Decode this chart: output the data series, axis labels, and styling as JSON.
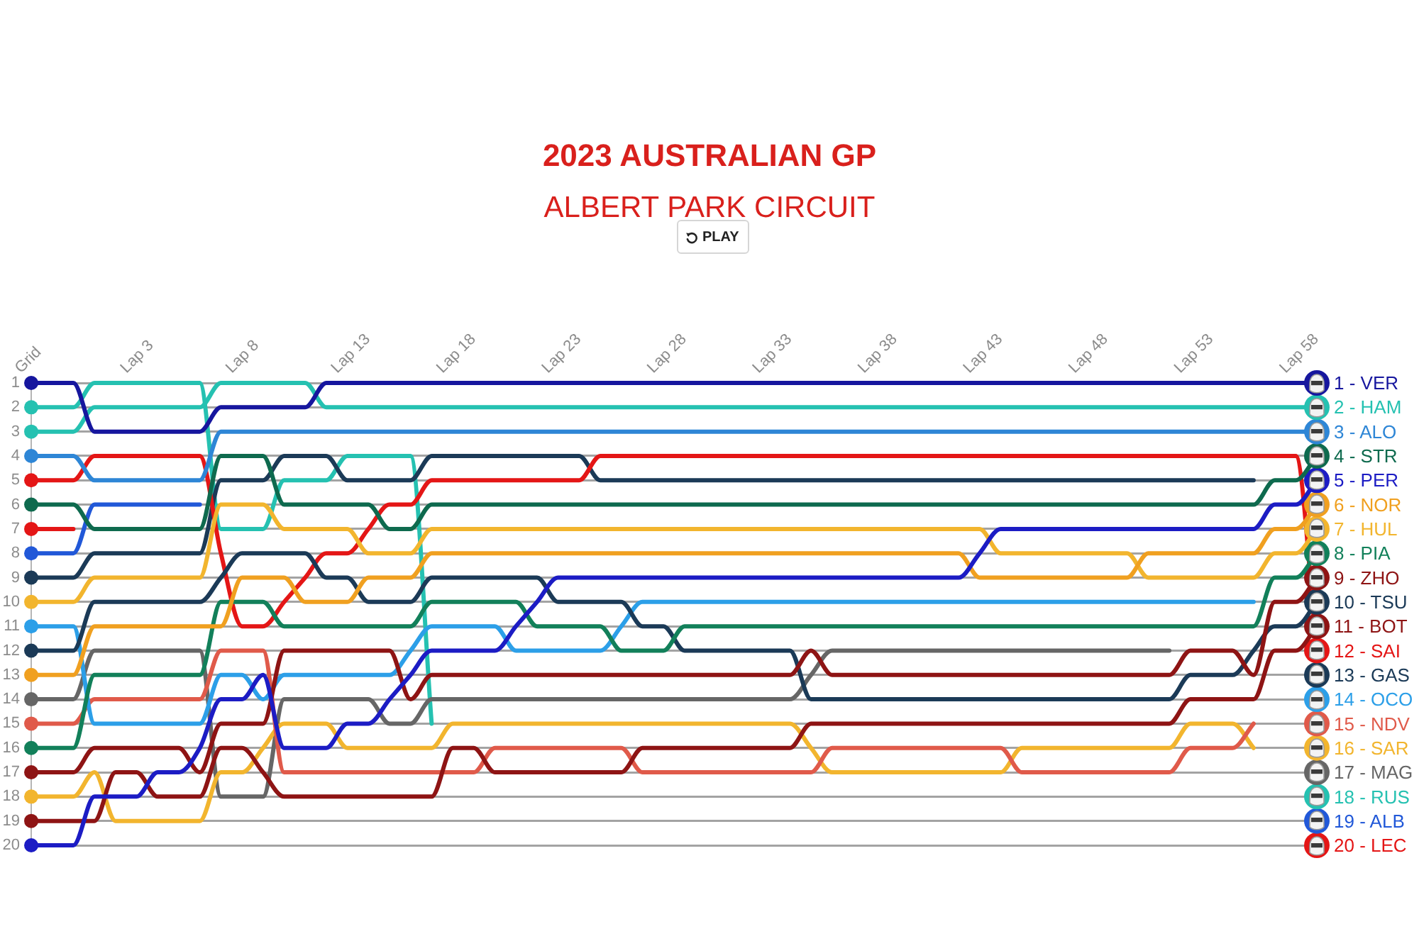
{
  "chart_data": {
    "type": "line",
    "title": "2023 AUSTRALIAN GP",
    "subtitle": "ALBERT PARK CIRCUIT",
    "annotations": [
      "PLAY"
    ],
    "categories": [
      "Grid",
      null,
      null,
      null,
      null,
      "Lap 3",
      null,
      null,
      null,
      null,
      "Lap 8",
      null,
      null,
      null,
      null,
      "Lap 13",
      null,
      null,
      null,
      null,
      "Lap 18",
      null,
      null,
      null,
      null,
      "Lap 23",
      null,
      null,
      null,
      null,
      "Lap 28",
      null,
      null,
      null,
      null,
      "Lap 33",
      null,
      null,
      null,
      null,
      "Lap 38",
      null,
      null,
      null,
      null,
      "Lap 43",
      null,
      null,
      null,
      null,
      "Lap 48",
      null,
      null,
      null,
      null,
      "Lap 53",
      null,
      null,
      null,
      null,
      "Lap 58",
      null
    ],
    "ylim": [
      20,
      1
    ],
    "yticks": [
      1,
      2,
      3,
      4,
      5,
      6,
      7,
      8,
      9,
      10,
      11,
      12,
      13,
      14,
      15,
      16,
      17,
      18,
      19,
      20
    ],
    "grid": "y",
    "series": [
      {
        "name": "1 - VER",
        "color": "#16169e",
        "values": [
          1,
          1,
          1,
          3,
          3,
          3,
          3,
          3,
          3,
          2,
          2,
          2,
          2,
          2,
          1,
          1,
          1,
          1,
          1,
          1,
          1,
          1,
          1,
          1,
          1,
          1,
          1,
          1,
          1,
          1,
          1,
          1,
          1,
          1,
          1,
          1,
          1,
          1,
          1,
          1,
          1,
          1,
          1,
          1,
          1,
          1,
          1,
          1,
          1,
          1,
          1,
          1,
          1,
          1,
          1,
          1,
          1,
          1,
          1,
          1,
          1,
          1
        ]
      },
      {
        "name": "2 - HAM",
        "color": "#25c1b1",
        "values": [
          3,
          3,
          3,
          2,
          2,
          2,
          2,
          2,
          2,
          1,
          1,
          1,
          1,
          1,
          2,
          2,
          2,
          2,
          2,
          2,
          2,
          2,
          2,
          2,
          2,
          2,
          2,
          2,
          2,
          2,
          2,
          2,
          2,
          2,
          2,
          2,
          2,
          2,
          2,
          2,
          2,
          2,
          2,
          2,
          2,
          2,
          2,
          2,
          2,
          2,
          2,
          2,
          2,
          2,
          2,
          2,
          2,
          2,
          2,
          2,
          2,
          2
        ]
      },
      {
        "name": "3 - ALO",
        "color": "#2e86d6",
        "values": [
          4,
          4,
          4,
          5,
          5,
          5,
          5,
          5,
          5,
          3,
          3,
          3,
          3,
          3,
          3,
          3,
          3,
          3,
          3,
          3,
          3,
          3,
          3,
          3,
          3,
          3,
          3,
          3,
          3,
          3,
          3,
          3,
          3,
          3,
          3,
          3,
          3,
          3,
          3,
          3,
          3,
          3,
          3,
          3,
          3,
          3,
          3,
          3,
          3,
          3,
          3,
          3,
          3,
          3,
          3,
          3,
          3,
          3,
          3,
          3,
          3,
          3
        ]
      },
      {
        "name": "4 - STR",
        "color": "#0e6a4e",
        "values": [
          6,
          6,
          6,
          7,
          7,
          7,
          7,
          7,
          7,
          4,
          4,
          4,
          6,
          6,
          6,
          6,
          6,
          7,
          7,
          6,
          6,
          6,
          6,
          6,
          6,
          6,
          6,
          6,
          6,
          6,
          6,
          6,
          6,
          6,
          6,
          6,
          6,
          6,
          6,
          6,
          6,
          6,
          6,
          6,
          6,
          6,
          6,
          6,
          6,
          6,
          6,
          6,
          6,
          6,
          6,
          6,
          6,
          6,
          6,
          5,
          5,
          4
        ]
      },
      {
        "name": "5 - PER",
        "color": "#1c1cc4",
        "values": [
          20,
          20,
          20,
          18,
          18,
          18,
          17,
          17,
          16,
          14,
          14,
          13,
          16,
          16,
          16,
          15,
          15,
          14,
          13,
          12,
          12,
          12,
          12,
          11,
          10,
          9,
          9,
          9,
          9,
          9,
          9,
          9,
          9,
          9,
          9,
          9,
          9,
          9,
          9,
          9,
          9,
          9,
          9,
          9,
          9,
          8,
          7,
          7,
          7,
          7,
          7,
          7,
          7,
          7,
          7,
          7,
          7,
          7,
          7,
          6,
          6,
          5
        ]
      },
      {
        "name": "6 - NOR",
        "color": "#f0a020",
        "values": [
          13,
          13,
          13,
          11,
          11,
          11,
          11,
          11,
          11,
          11,
          9,
          9,
          9,
          10,
          10,
          10,
          9,
          9,
          9,
          8,
          8,
          8,
          8,
          8,
          8,
          8,
          8,
          8,
          8,
          8,
          8,
          8,
          8,
          8,
          8,
          8,
          8,
          8,
          8,
          8,
          8,
          8,
          8,
          8,
          8,
          9,
          9,
          9,
          9,
          9,
          9,
          9,
          9,
          8,
          8,
          8,
          8,
          8,
          8,
          7,
          7,
          6
        ]
      },
      {
        "name": "7 - HUL",
        "color": "#f2b52e",
        "values": [
          10,
          10,
          10,
          9,
          9,
          9,
          9,
          9,
          9,
          6,
          6,
          6,
          7,
          7,
          7,
          7,
          8,
          8,
          8,
          7,
          7,
          7,
          7,
          7,
          7,
          7,
          7,
          7,
          7,
          7,
          7,
          7,
          7,
          7,
          7,
          7,
          7,
          7,
          7,
          7,
          7,
          7,
          7,
          7,
          7,
          7,
          8,
          8,
          8,
          8,
          8,
          8,
          8,
          9,
          9,
          9,
          9,
          9,
          9,
          8,
          8,
          7
        ]
      },
      {
        "name": "8 - PIA",
        "color": "#12805a",
        "values": [
          16,
          16,
          16,
          13,
          13,
          13,
          13,
          13,
          13,
          10,
          10,
          10,
          11,
          11,
          11,
          11,
          11,
          11,
          11,
          10,
          10,
          10,
          10,
          10,
          11,
          11,
          11,
          11,
          12,
          12,
          12,
          11,
          11,
          11,
          11,
          11,
          11,
          11,
          11,
          11,
          11,
          11,
          11,
          11,
          11,
          11,
          11,
          11,
          11,
          11,
          11,
          11,
          11,
          11,
          11,
          11,
          11,
          11,
          11,
          9,
          9,
          8
        ]
      },
      {
        "name": "9 - ZHO",
        "color": "#8e1414",
        "values": [
          17,
          17,
          17,
          16,
          16,
          16,
          16,
          16,
          17,
          15,
          15,
          15,
          12,
          12,
          12,
          12,
          12,
          12,
          14,
          13,
          13,
          13,
          13,
          13,
          13,
          13,
          13,
          13,
          13,
          13,
          13,
          13,
          13,
          13,
          13,
          13,
          13,
          12,
          13,
          13,
          13,
          13,
          13,
          13,
          13,
          13,
          13,
          13,
          13,
          13,
          13,
          13,
          13,
          13,
          13,
          12,
          12,
          12,
          13,
          10,
          10,
          9
        ]
      },
      {
        "name": "10 - TSU",
        "color": "#1b3a57",
        "values": [
          12,
          12,
          12,
          10,
          10,
          10,
          10,
          10,
          10,
          9,
          8,
          8,
          8,
          8,
          9,
          9,
          10,
          10,
          10,
          9,
          9,
          9,
          9,
          9,
          9,
          10,
          10,
          10,
          10,
          11,
          11,
          12,
          12,
          12,
          12,
          12,
          12,
          14,
          14,
          14,
          14,
          14,
          14,
          14,
          14,
          14,
          14,
          14,
          14,
          14,
          14,
          14,
          14,
          14,
          14,
          13,
          13,
          13,
          12,
          11,
          11,
          10
        ]
      },
      {
        "name": "11 - BOT",
        "color": "#8e1414",
        "values": [
          19,
          19,
          19,
          19,
          17,
          17,
          18,
          18,
          18,
          16,
          16,
          17,
          18,
          18,
          18,
          18,
          18,
          18,
          18,
          18,
          16,
          16,
          17,
          17,
          17,
          17,
          17,
          17,
          17,
          16,
          16,
          16,
          16,
          16,
          16,
          16,
          16,
          15,
          15,
          15,
          15,
          15,
          15,
          15,
          15,
          15,
          15,
          15,
          15,
          15,
          15,
          15,
          15,
          15,
          15,
          14,
          14,
          14,
          14,
          12,
          12,
          11
        ]
      },
      {
        "name": "12 - SAI",
        "color": "#e41616",
        "values": [
          5,
          5,
          5,
          4,
          4,
          4,
          4,
          4,
          4,
          8,
          11,
          11,
          10,
          9,
          8,
          8,
          7,
          6,
          6,
          5,
          5,
          5,
          5,
          5,
          5,
          5,
          5,
          4,
          4,
          4,
          4,
          4,
          4,
          4,
          4,
          4,
          4,
          4,
          4,
          4,
          4,
          4,
          4,
          4,
          4,
          4,
          4,
          4,
          4,
          4,
          4,
          4,
          4,
          4,
          4,
          4,
          4,
          4,
          4,
          4,
          4,
          12
        ]
      },
      {
        "name": "13 - GAS",
        "color": "#1b3a57",
        "values": [
          9,
          9,
          9,
          8,
          8,
          8,
          8,
          8,
          8,
          5,
          5,
          5,
          4,
          4,
          4,
          5,
          5,
          5,
          5,
          4,
          4,
          4,
          4,
          4,
          4,
          4,
          4,
          5,
          5,
          5,
          5,
          5,
          5,
          5,
          5,
          5,
          5,
          5,
          5,
          5,
          5,
          5,
          5,
          5,
          5,
          5,
          5,
          5,
          5,
          5,
          5,
          5,
          5,
          5,
          5,
          5,
          5,
          5,
          5,
          null,
          null,
          13
        ]
      },
      {
        "name": "14 - OCO",
        "color": "#2c9fe8",
        "values": [
          11,
          11,
          11,
          15,
          15,
          15,
          15,
          15,
          15,
          13,
          13,
          14,
          13,
          13,
          13,
          13,
          13,
          13,
          12,
          11,
          11,
          11,
          11,
          12,
          12,
          12,
          12,
          12,
          11,
          10,
          10,
          10,
          10,
          10,
          10,
          10,
          10,
          10,
          10,
          10,
          10,
          10,
          10,
          10,
          10,
          10,
          10,
          10,
          10,
          10,
          10,
          10,
          10,
          10,
          10,
          10,
          10,
          10,
          10,
          null,
          null,
          14
        ]
      },
      {
        "name": "15 - NDV",
        "color": "#e05a4a",
        "values": [
          15,
          15,
          15,
          14,
          14,
          14,
          14,
          14,
          14,
          12,
          12,
          12,
          17,
          17,
          17,
          17,
          17,
          17,
          17,
          17,
          17,
          17,
          16,
          16,
          16,
          16,
          16,
          16,
          16,
          17,
          17,
          17,
          17,
          17,
          17,
          17,
          17,
          17,
          16,
          16,
          16,
          16,
          16,
          16,
          16,
          16,
          16,
          17,
          17,
          17,
          17,
          17,
          17,
          17,
          17,
          16,
          16,
          16,
          15,
          null,
          null,
          15
        ]
      },
      {
        "name": "16 - SAR",
        "color": "#f2b52e",
        "values": [
          18,
          18,
          18,
          17,
          19,
          19,
          19,
          19,
          19,
          17,
          17,
          16,
          15,
          15,
          15,
          16,
          16,
          16,
          16,
          16,
          15,
          15,
          15,
          15,
          15,
          15,
          15,
          15,
          15,
          15,
          15,
          15,
          15,
          15,
          15,
          15,
          15,
          16,
          17,
          17,
          17,
          17,
          17,
          17,
          17,
          17,
          17,
          16,
          16,
          16,
          16,
          16,
          16,
          16,
          16,
          15,
          15,
          15,
          16,
          null,
          null,
          16
        ]
      },
      {
        "name": "17 - MAG",
        "color": "#666666",
        "values": [
          14,
          14,
          14,
          12,
          12,
          12,
          12,
          12,
          12,
          18,
          18,
          18,
          14,
          14,
          14,
          14,
          14,
          15,
          15,
          14,
          14,
          14,
          14,
          14,
          14,
          14,
          14,
          14,
          14,
          14,
          14,
          14,
          14,
          14,
          14,
          14,
          14,
          13,
          12,
          12,
          12,
          12,
          12,
          12,
          12,
          12,
          12,
          12,
          12,
          12,
          12,
          12,
          12,
          12,
          12,
          null,
          null,
          null,
          null,
          null,
          null,
          17
        ]
      },
      {
        "name": "18 - RUS",
        "color": "#25c1b1",
        "values": [
          2,
          2,
          2,
          1,
          1,
          1,
          1,
          1,
          1,
          7,
          7,
          7,
          5,
          5,
          5,
          4,
          4,
          4,
          4,
          15,
          null,
          null,
          null,
          null,
          null,
          null,
          null,
          null,
          null,
          null,
          null,
          null,
          null,
          null,
          null,
          null,
          null,
          null,
          null,
          null,
          null,
          null,
          null,
          null,
          null,
          null,
          null,
          null,
          null,
          null,
          null,
          null,
          null,
          null,
          null,
          null,
          null,
          null,
          null,
          null,
          null,
          18
        ]
      },
      {
        "name": "19 - ALB",
        "color": "#2158d8",
        "values": [
          8,
          8,
          8,
          6,
          6,
          6,
          6,
          6,
          6,
          null,
          null,
          null,
          null,
          null,
          null,
          null,
          null,
          null,
          null,
          null,
          null,
          null,
          null,
          null,
          null,
          null,
          null,
          null,
          null,
          null,
          null,
          null,
          null,
          null,
          null,
          null,
          null,
          null,
          null,
          null,
          null,
          null,
          null,
          null,
          null,
          null,
          null,
          null,
          null,
          null,
          null,
          null,
          null,
          null,
          null,
          null,
          null,
          null,
          null,
          null,
          null,
          19
        ]
      },
      {
        "name": "20 - LEC",
        "color": "#e41616",
        "values": [
          7,
          7,
          7,
          null,
          null,
          null,
          null,
          null,
          null,
          null,
          null,
          null,
          null,
          null,
          null,
          null,
          null,
          null,
          null,
          null,
          null,
          null,
          null,
          null,
          null,
          null,
          null,
          null,
          null,
          null,
          null,
          null,
          null,
          null,
          null,
          null,
          null,
          null,
          null,
          null,
          null,
          null,
          null,
          null,
          null,
          null,
          null,
          null,
          null,
          null,
          null,
          null,
          null,
          null,
          null,
          null,
          null,
          null,
          null,
          null,
          null,
          20
        ]
      }
    ]
  }
}
